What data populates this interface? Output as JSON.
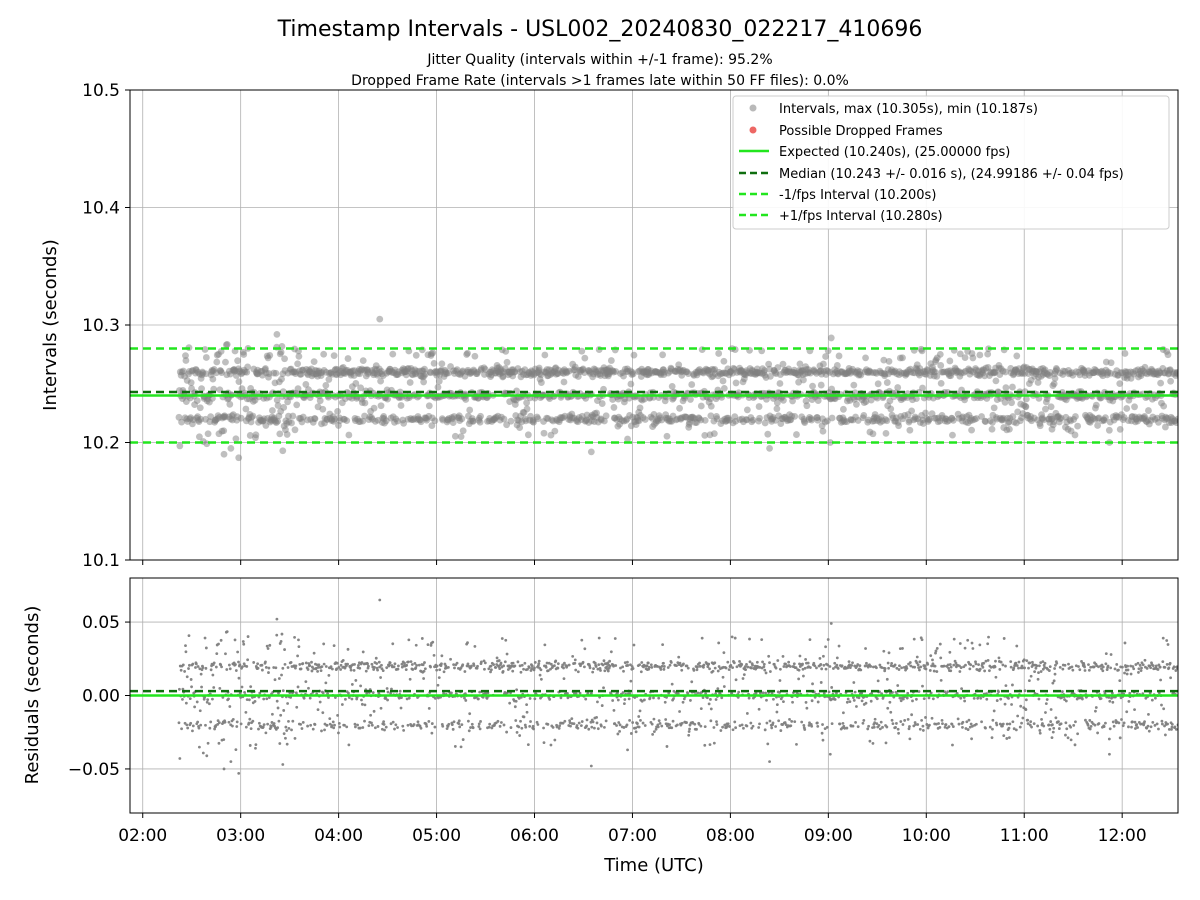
{
  "figure": {
    "title": "Timestamp Intervals - USL002_20240830_022217_410696",
    "subtitle_1": "Jitter Quality (intervals within +/-1 frame): 95.2%",
    "subtitle_2": "Dropped Frame Rate (intervals >1 frames late within 50 FF files): 0.0%"
  },
  "colors": {
    "points": "#808080",
    "dropped": "#e8413d",
    "expected": "#22e61e",
    "median": "#0f6e0f",
    "fps_interval": "#22e61e",
    "grid": "#b0b0b0"
  },
  "chart_data": [
    {
      "type": "scatter",
      "panel": "intervals",
      "ylabel": "Intervals (seconds)",
      "xlabel": "",
      "xlim": [
        1.87,
        12.57
      ],
      "ylim": [
        10.1,
        10.5
      ],
      "y_ticks": [
        "10.1",
        "10.2",
        "10.3",
        "10.4",
        "10.5"
      ],
      "grid": true,
      "legend_position": "top-right",
      "legend": [
        {
          "label": "Intervals, max (10.305s), min (10.187s)",
          "marker": "dot",
          "color": "#808080"
        },
        {
          "label": "Possible Dropped Frames",
          "marker": "dot",
          "color": "#e8413d"
        },
        {
          "label": "Expected (10.240s), (25.00000 fps)",
          "marker": "solid",
          "color": "#22e61e"
        },
        {
          "label": "Median (10.243 +/- 0.016 s), (24.99186 +/- 0.04 fps)",
          "marker": "dashed",
          "color": "#0f6e0f"
        },
        {
          "label": "-1/fps Interval (10.200s)",
          "marker": "dashed",
          "color": "#22e61e"
        },
        {
          "label": "+1/fps Interval (10.280s)",
          "marker": "dashed",
          "color": "#22e61e"
        }
      ],
      "reference_lines": {
        "expected": 10.24,
        "median": 10.243,
        "minus_interval": 10.2,
        "plus_interval": 10.28
      },
      "x_range_hours": [
        2.37,
        12.57
      ],
      "interval_levels_s": [
        10.22,
        10.24,
        10.26
      ],
      "max": 10.305,
      "min": 10.187,
      "dropped_frames": []
    },
    {
      "type": "scatter",
      "panel": "residuals",
      "ylabel": "Residuals (seconds)",
      "xlabel": "Time (UTC)",
      "xlim": [
        1.87,
        12.57
      ],
      "ylim": [
        -0.08,
        0.08
      ],
      "y_ticks": [
        "−0.05",
        "0.00",
        "0.05"
      ],
      "x_ticks": [
        "02:00",
        "03:00",
        "04:00",
        "05:00",
        "06:00",
        "07:00",
        "08:00",
        "09:00",
        "10:00",
        "11:00",
        "12:00"
      ],
      "grid": true,
      "reference_lines": {
        "expected": 0.0,
        "median": 0.003
      },
      "residual_levels_s": [
        -0.02,
        0.0,
        0.02
      ]
    }
  ]
}
